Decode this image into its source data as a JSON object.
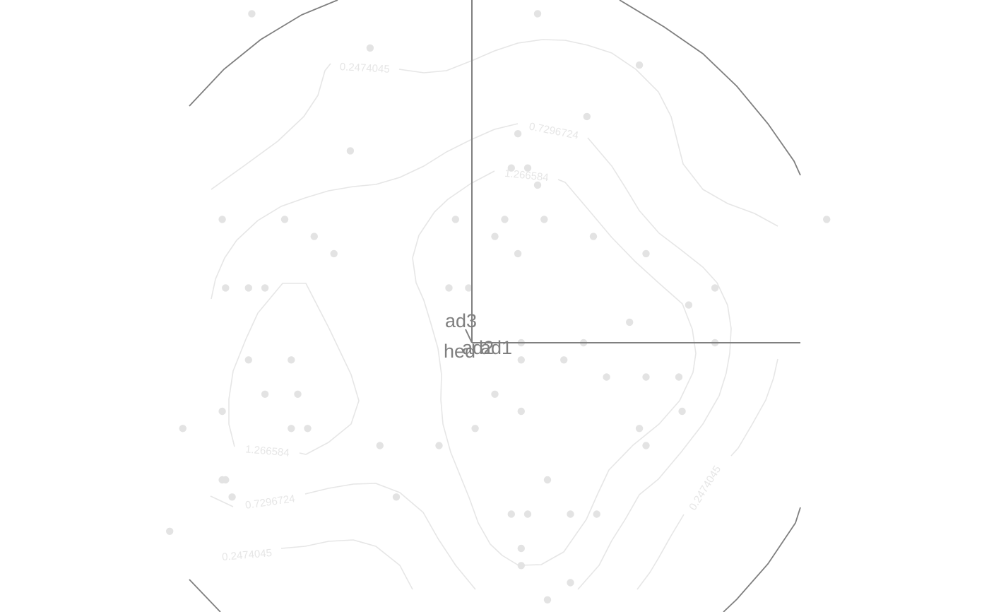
{
  "chart_data": {
    "type": "scatter",
    "description_kind": "ordination biplot with contour overlay",
    "contour_levels": [
      "0.2474045",
      "0.7296724",
      "1.266584"
    ],
    "vectors": [
      {
        "name": "ad1",
        "x": 1.0,
        "y": 0.0
      },
      {
        "name": "ad3",
        "x": 0.0,
        "y": 1.0
      },
      {
        "name": "ad2",
        "x": 0.03,
        "y": 0.0
      },
      {
        "name": "hed",
        "x": -0.02,
        "y": -0.04
      }
    ],
    "points": [
      [
        -0.67,
        0.96
      ],
      [
        -0.31,
        0.86
      ],
      [
        0.2,
        0.96
      ],
      [
        0.51,
        0.81
      ],
      [
        0.35,
        0.66
      ],
      [
        -0.37,
        0.56
      ],
      [
        0.14,
        0.61
      ],
      [
        0.12,
        0.51
      ],
      [
        0.17,
        0.51
      ],
      [
        0.2,
        0.46
      ],
      [
        -0.76,
        0.36
      ],
      [
        -0.57,
        0.36
      ],
      [
        -0.48,
        0.31
      ],
      [
        -0.42,
        0.26
      ],
      [
        -0.05,
        0.36
      ],
      [
        0.1,
        0.36
      ],
      [
        0.22,
        0.36
      ],
      [
        0.07,
        0.31
      ],
      [
        0.14,
        0.26
      ],
      [
        0.37,
        0.31
      ],
      [
        0.53,
        0.26
      ],
      [
        -0.75,
        0.16
      ],
      [
        -0.68,
        0.16
      ],
      [
        -0.63,
        0.16
      ],
      [
        -0.07,
        0.16
      ],
      [
        -0.01,
        0.16
      ],
      [
        0.74,
        0.16
      ],
      [
        0.66,
        0.11
      ],
      [
        0.48,
        0.06
      ],
      [
        0.15,
        0.0
      ],
      [
        0.34,
        0.0
      ],
      [
        0.74,
        0.0
      ],
      [
        -0.68,
        -0.05
      ],
      [
        -0.55,
        -0.05
      ],
      [
        0.15,
        -0.05
      ],
      [
        0.28,
        -0.05
      ],
      [
        0.41,
        -0.1
      ],
      [
        0.53,
        -0.1
      ],
      [
        0.63,
        -0.1
      ],
      [
        -0.63,
        -0.15
      ],
      [
        -0.53,
        -0.15
      ],
      [
        0.07,
        -0.15
      ],
      [
        -0.76,
        -0.2
      ],
      [
        0.15,
        -0.2
      ],
      [
        0.64,
        -0.2
      ],
      [
        -0.88,
        -0.25
      ],
      [
        -0.55,
        -0.25
      ],
      [
        -0.5,
        -0.25
      ],
      [
        0.01,
        -0.25
      ],
      [
        0.51,
        -0.25
      ],
      [
        -0.28,
        -0.3
      ],
      [
        -0.1,
        -0.3
      ],
      [
        0.53,
        -0.3
      ],
      [
        -0.76,
        -0.4
      ],
      [
        -0.75,
        -0.4
      ],
      [
        0.23,
        -0.4
      ],
      [
        -0.73,
        -0.45
      ],
      [
        -0.23,
        -0.45
      ],
      [
        0.12,
        -0.5
      ],
      [
        0.17,
        -0.5
      ],
      [
        0.3,
        -0.5
      ],
      [
        0.38,
        -0.5
      ],
      [
        -0.92,
        -0.55
      ],
      [
        0.15,
        -0.6
      ],
      [
        0.15,
        -0.65
      ],
      [
        0.3,
        -0.7
      ],
      [
        0.23,
        -0.75
      ],
      [
        0.11,
        -0.8
      ],
      [
        0.14,
        -0.85
      ],
      [
        1.08,
        0.36
      ]
    ],
    "xlim": [
      -1.0,
      1.1
    ],
    "ylim": [
      -0.9,
      1.05
    ],
    "grid": false,
    "legend": "none"
  }
}
